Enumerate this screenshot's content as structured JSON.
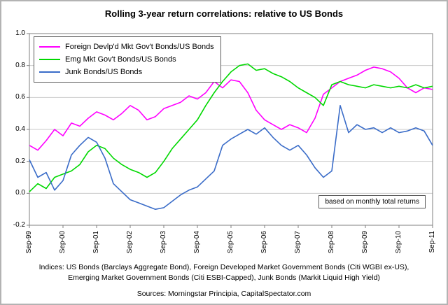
{
  "title": "Rolling 3-year return correlations: relative to US Bonds",
  "annotation": "based on monthly total returns",
  "footer": {
    "indices_line1": "Indices: US Bonds (Barclays Aggregate Bond), Foreign Developed Market Government Bonds (Citi WGBI ex-US),",
    "indices_line2": "Emerging Market Government Bonds (Citi ESBI-Capped), Junk Bonds (Markit Liquid High Yield)",
    "sources": "Sources: Morningstar Principia, CapitalSpectator.com"
  },
  "chart_data": {
    "type": "line",
    "title": "Rolling 3-year return correlations: relative to US Bonds",
    "grid": true,
    "legend_position": "top-left",
    "annotation": "based on monthly total returns",
    "ylim": [
      -0.2,
      1.0
    ],
    "yticks": [
      "1.0",
      "0.8",
      "0.6",
      "0.4",
      "0.2",
      "0.0",
      "-0.2"
    ],
    "xtick_every": 4,
    "xticklabels": [
      "Sep-99",
      "Sep-00",
      "Sep-01",
      "Sep-02",
      "Sep-03",
      "Sep-04",
      "Sep-05",
      "Sep-06",
      "Sep-07",
      "Sep-08",
      "Sep-09",
      "Sep-10",
      "Sep-11"
    ],
    "x": [
      "Sep-99",
      "Dec-99",
      "Mar-00",
      "Jun-00",
      "Sep-00",
      "Dec-00",
      "Mar-01",
      "Jun-01",
      "Sep-01",
      "Dec-01",
      "Mar-02",
      "Jun-02",
      "Sep-02",
      "Dec-02",
      "Mar-03",
      "Jun-03",
      "Sep-03",
      "Dec-03",
      "Mar-04",
      "Jun-04",
      "Sep-04",
      "Dec-04",
      "Mar-05",
      "Jun-05",
      "Sep-05",
      "Dec-05",
      "Mar-06",
      "Jun-06",
      "Sep-06",
      "Dec-06",
      "Mar-07",
      "Jun-07",
      "Sep-07",
      "Dec-07",
      "Mar-08",
      "Jun-08",
      "Sep-08",
      "Dec-08",
      "Mar-09",
      "Jun-09",
      "Sep-09",
      "Dec-09",
      "Mar-10",
      "Jun-10",
      "Sep-10",
      "Dec-10",
      "Mar-11",
      "Jun-11",
      "Sep-11"
    ],
    "series": [
      {
        "name": "Foreign Devlp'd Mkt Gov't Bonds/US Bonds",
        "color": "#FF00FF",
        "values": [
          0.3,
          0.27,
          0.33,
          0.4,
          0.36,
          0.44,
          0.42,
          0.47,
          0.51,
          0.49,
          0.46,
          0.5,
          0.55,
          0.52,
          0.46,
          0.48,
          0.53,
          0.55,
          0.57,
          0.61,
          0.59,
          0.63,
          0.7,
          0.66,
          0.71,
          0.7,
          0.63,
          0.52,
          0.46,
          0.43,
          0.4,
          0.43,
          0.41,
          0.38,
          0.47,
          0.62,
          0.66,
          0.7,
          0.72,
          0.74,
          0.77,
          0.79,
          0.78,
          0.76,
          0.72,
          0.66,
          0.63,
          0.66,
          0.65
        ]
      },
      {
        "name": "Emg Mkt Gov't Bonds/US Bonds",
        "color": "#00D800",
        "values": [
          0.01,
          0.06,
          0.03,
          0.1,
          0.12,
          0.14,
          0.18,
          0.26,
          0.3,
          0.28,
          0.22,
          0.18,
          0.15,
          0.13,
          0.1,
          0.13,
          0.2,
          0.28,
          0.34,
          0.4,
          0.46,
          0.55,
          0.63,
          0.7,
          0.76,
          0.8,
          0.81,
          0.77,
          0.78,
          0.75,
          0.73,
          0.7,
          0.66,
          0.63,
          0.6,
          0.55,
          0.68,
          0.7,
          0.68,
          0.67,
          0.66,
          0.68,
          0.67,
          0.66,
          0.67,
          0.66,
          0.68,
          0.66,
          0.67
        ]
      },
      {
        "name": "Junk Bonds/US Bonds",
        "color": "#3A6CC8",
        "values": [
          0.21,
          0.1,
          0.13,
          0.02,
          0.08,
          0.24,
          0.3,
          0.35,
          0.32,
          0.22,
          0.06,
          0.01,
          -0.04,
          -0.06,
          -0.08,
          -0.1,
          -0.09,
          -0.05,
          -0.01,
          0.02,
          0.04,
          0.09,
          0.14,
          0.3,
          0.34,
          0.37,
          0.4,
          0.37,
          0.41,
          0.35,
          0.3,
          0.27,
          0.3,
          0.24,
          0.16,
          0.1,
          0.14,
          0.55,
          0.38,
          0.43,
          0.4,
          0.41,
          0.38,
          0.41,
          0.38,
          0.39,
          0.41,
          0.39,
          0.3
        ]
      }
    ]
  }
}
